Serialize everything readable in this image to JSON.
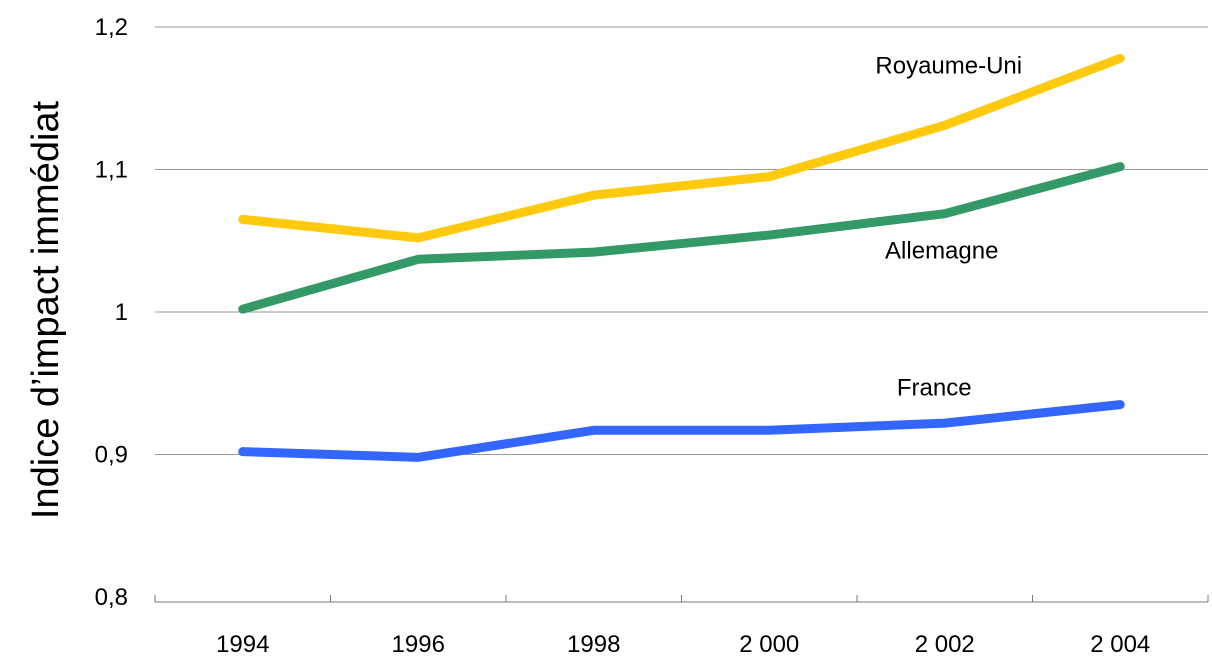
{
  "chart_data": {
    "type": "line",
    "title": "",
    "xlabel": "",
    "ylabel": "Indice d’impact immédiat",
    "x": [
      "1994",
      "1996",
      "1998",
      "2 000",
      "2 002",
      "2 004"
    ],
    "ylim": [
      0.8,
      1.2
    ],
    "yticks": [
      "0,8",
      "0,9",
      "1",
      "1,1",
      "1,2"
    ],
    "grid": true,
    "legend": "none",
    "series": [
      {
        "name": "Royaume-Uni",
        "color": "#FFC90E",
        "values": [
          1.065,
          1.052,
          1.082,
          1.095,
          1.131,
          1.178
        ]
      },
      {
        "name": "Allemagne",
        "color": "#339966",
        "values": [
          1.002,
          1.037,
          1.042,
          1.054,
          1.069,
          1.102
        ]
      },
      {
        "name": "France",
        "color": "#3366FF",
        "values": [
          0.902,
          0.898,
          0.917,
          0.917,
          0.922,
          0.935
        ]
      }
    ]
  }
}
